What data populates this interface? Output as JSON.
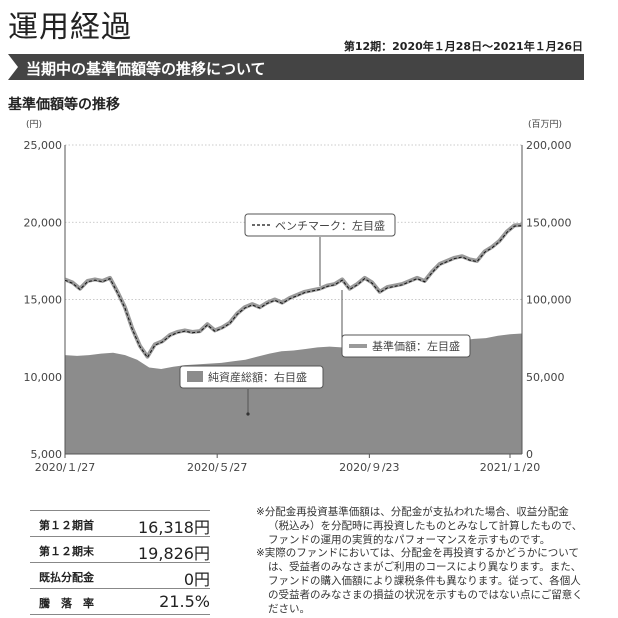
{
  "header": {
    "title": "運用経過",
    "period": "第12期：2020年１月28日～2021年１月26日",
    "section_title": "当期中の基準価額等の推移について",
    "chart_heading": "基準価額等の推移"
  },
  "chart_data": {
    "type": "line+area",
    "left_unit": "(円)",
    "right_unit": "(百万円)",
    "left_axis": {
      "range": [
        5000,
        25000
      ],
      "ticks": [
        "5,000",
        "10,000",
        "15,000",
        "20,000",
        "25,000"
      ]
    },
    "right_axis": {
      "range": [
        0,
        200000
      ],
      "ticks": [
        "0",
        "50,000",
        "100,000",
        "150,000",
        "200,000"
      ]
    },
    "x_ticks": [
      "2020/１/27",
      "2020/５/27",
      "2020/９/23",
      "2021/１/20"
    ],
    "grid": true,
    "series": [
      {
        "name": "基準価額：左目盛",
        "axis": "left",
        "values": [
          16300,
          16100,
          15700,
          16200,
          16300,
          16200,
          16400,
          15500,
          14500,
          13100,
          12000,
          11300,
          12100,
          12300,
          12700,
          12900,
          13000,
          12900,
          12950,
          13400,
          13000,
          13200,
          13500,
          14100,
          14500,
          14700,
          14500,
          14800,
          15000,
          14800,
          15100,
          15300,
          15500,
          15600,
          15700,
          15900,
          16000,
          16300,
          15700,
          16000,
          16400,
          16100,
          15500,
          15800,
          15900,
          16000,
          16200,
          16400,
          16200,
          16800,
          17300,
          17500,
          17700,
          17800,
          17600,
          17500,
          18100,
          18400,
          18800,
          19400,
          19800,
          19826
        ]
      },
      {
        "name": "ベンチマーク：左目盛",
        "axis": "left",
        "values": [
          16250,
          16050,
          15650,
          16150,
          16250,
          16150,
          16350,
          15450,
          14450,
          13050,
          11950,
          11250,
          12050,
          12250,
          12650,
          12850,
          12950,
          12850,
          12900,
          13350,
          12950,
          13150,
          13450,
          14050,
          14450,
          14650,
          14450,
          14750,
          14950,
          14750,
          15050,
          15250,
          15450,
          15550,
          15650,
          15850,
          15950,
          16250,
          15650,
          15950,
          16350,
          16050,
          15450,
          15750,
          15850,
          15950,
          16150,
          16350,
          16150,
          16750,
          17250,
          17450,
          17650,
          17750,
          17550,
          17450,
          18050,
          18350,
          18750,
          19350,
          19750,
          19780
        ]
      },
      {
        "name": "純資産総額：右目盛",
        "axis": "right",
        "type": "area",
        "values": [
          64000,
          63500,
          64000,
          65000,
          65500,
          64000,
          61000,
          56000,
          55000,
          56500,
          57500,
          58000,
          58500,
          59000,
          60000,
          61000,
          63000,
          65000,
          66500,
          67000,
          68000,
          69000,
          69500,
          69000,
          70000,
          70500,
          69500,
          70500,
          71000,
          70000,
          71500,
          72000,
          72500,
          73500,
          74500,
          75000,
          76500,
          77500,
          78000
        ]
      }
    ],
    "legend_labels": {
      "benchmark": "ベンチマーク：左目盛",
      "nav": "基準価額：左目盛",
      "assets": "純資産総額：右目盛"
    },
    "colors": {
      "nav": "#9a9a9a",
      "benchmark": "#111111",
      "assets": "#8c8c8c",
      "grid": "#bbbbbb"
    }
  },
  "summary": [
    {
      "label": "第１２期首",
      "value": "16,318円"
    },
    {
      "label": "第１２期末",
      "value": "19,826円"
    },
    {
      "label": "既払分配金",
      "value": "0円"
    },
    {
      "label": "騰　落　率",
      "value": "21.5%"
    }
  ],
  "notes": [
    "※分配金再投資基準価額は、分配金が支払われた場合、収益分配金（税込み）を分配時に再投資したものとみなして計算したもので、ファンドの運用の実質的なパフォーマンスを示すものです。",
    "※実際のファンドにおいては、分配金を再投資するかどうかについては、受益者のみなさまがご利用のコースにより異なります。また、ファンドの購入価額により課税条件も異なります。従って、各個人の受益者のみなさまの損益の状況を示すものではない点にご留意ください。"
  ]
}
